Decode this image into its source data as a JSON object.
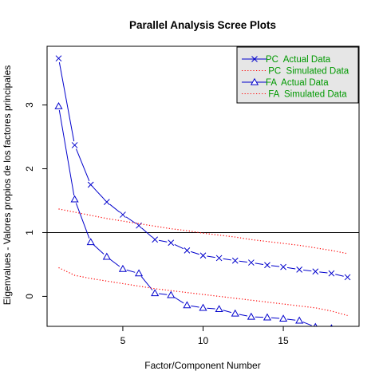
{
  "chart_data": {
    "type": "line",
    "title": "Parallel Analysis Scree Plots",
    "xlabel": "Factor/Component Number",
    "ylabel": "Eigenvalues - Valores propios de los factores principales",
    "xlim": [
      0.28,
      19.72
    ],
    "ylim": [
      -0.47,
      3.92
    ],
    "x_ticks": [
      5,
      10,
      15
    ],
    "y_ticks": [
      0,
      1,
      2,
      3
    ],
    "grid": false,
    "legend_position": "top-right",
    "reference_line": {
      "y": 1
    },
    "x": [
      1,
      2,
      3,
      4,
      5,
      6,
      7,
      8,
      9,
      10,
      11,
      12,
      13,
      14,
      15,
      16,
      17,
      18,
      19
    ],
    "series": [
      {
        "name": "PC  Actual Data",
        "color": "#0000CC",
        "line": "solid",
        "marker": "x",
        "values": [
          3.73,
          2.37,
          1.75,
          1.48,
          1.28,
          1.11,
          0.89,
          0.84,
          0.72,
          0.64,
          0.6,
          0.56,
          0.53,
          0.49,
          0.46,
          0.42,
          0.39,
          0.36,
          0.3
        ]
      },
      {
        "name": " PC  Simulated Data",
        "color": "#FF0000",
        "line": "dotted",
        "marker": "none",
        "values": [
          1.37,
          1.32,
          1.27,
          1.22,
          1.18,
          1.14,
          1.1,
          1.06,
          1.03,
          0.99,
          0.96,
          0.93,
          0.89,
          0.86,
          0.83,
          0.8,
          0.76,
          0.72,
          0.67
        ]
      },
      {
        "name": "FA  Actual Data",
        "color": "#0000CC",
        "line": "solid",
        "marker": "triangle",
        "values": [
          2.98,
          1.52,
          0.85,
          0.62,
          0.43,
          0.36,
          0.05,
          0.02,
          -0.14,
          -0.18,
          -0.2,
          -0.27,
          -0.32,
          -0.33,
          -0.35,
          -0.38,
          -0.48,
          -0.5,
          -0.53
        ]
      },
      {
        "name": " FA  Simulated Data",
        "color": "#FF0000",
        "line": "dotted",
        "marker": "none",
        "values": [
          0.45,
          0.33,
          0.28,
          0.24,
          0.2,
          0.16,
          0.12,
          0.09,
          0.06,
          0.03,
          0.0,
          -0.03,
          -0.06,
          -0.09,
          -0.12,
          -0.15,
          -0.18,
          -0.23,
          -0.3
        ]
      }
    ]
  }
}
